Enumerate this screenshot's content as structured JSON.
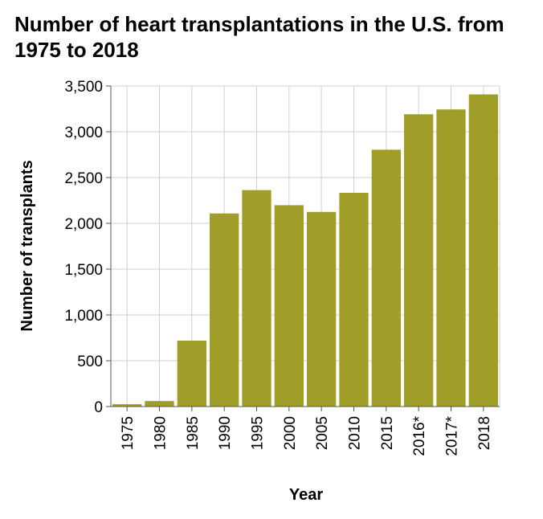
{
  "chart_data": {
    "type": "bar",
    "title": "Number of heart transplantations in the U.S. from 1975 to 2018",
    "xlabel": "Year",
    "ylabel": "Number of transplants",
    "categories": [
      "1975",
      "1980",
      "1985",
      "1990",
      "1995",
      "2000",
      "2005",
      "2010",
      "2015",
      "2016*",
      "2017*",
      "2018"
    ],
    "values": [
      25,
      60,
      719,
      2108,
      2363,
      2198,
      2125,
      2333,
      2804,
      3191,
      3244,
      3408
    ],
    "ylim": [
      0,
      3500
    ],
    "yticks": [
      0,
      500,
      1000,
      1500,
      2000,
      2500,
      3000,
      3500
    ],
    "ytick_labels": [
      "0",
      "500",
      "1,000",
      "1,500",
      "2,000",
      "2,500",
      "3,000",
      "3,500"
    ],
    "bar_color": "#a09e28",
    "grid": true
  }
}
